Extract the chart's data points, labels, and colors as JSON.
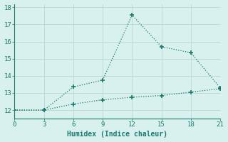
{
  "xlabel": "Humidex (Indice chaleur)",
  "line1_x": [
    0,
    3,
    6,
    9,
    12,
    15,
    18,
    21
  ],
  "line1_y": [
    12.0,
    12.0,
    13.35,
    13.75,
    17.55,
    15.7,
    15.35,
    13.3
  ],
  "line2_x": [
    0,
    3,
    6,
    9,
    12,
    15,
    18,
    21
  ],
  "line2_y": [
    12.0,
    12.0,
    12.35,
    12.6,
    12.75,
    12.85,
    13.05,
    13.25
  ],
  "line_color": "#1a7a6e",
  "bg_color": "#d8f0ee",
  "grid_color": "#b8d8d4",
  "spine_color": "#1a7a6e",
  "xlim": [
    0,
    21
  ],
  "ylim": [
    11.5,
    18.2
  ],
  "xticks": [
    0,
    3,
    6,
    9,
    12,
    15,
    18,
    21
  ],
  "yticks": [
    12,
    13,
    14,
    15,
    16,
    17,
    18
  ],
  "marker": "+",
  "markersize": 4,
  "linewidth": 0.9,
  "linestyle": ":"
}
